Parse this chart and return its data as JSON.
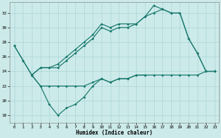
{
  "bg_color": "#cceaea",
  "grid_color": "#aad4d4",
  "line_color": "#1a7a6e",
  "xlabel": "Humidex (Indice chaleur)",
  "xlim": [
    -0.5,
    23.5
  ],
  "ylim": [
    17.0,
    33.5
  ],
  "yticks": [
    18,
    20,
    22,
    24,
    26,
    28,
    30,
    32
  ],
  "xticks": [
    0,
    1,
    2,
    3,
    4,
    5,
    6,
    7,
    8,
    9,
    10,
    11,
    12,
    13,
    14,
    15,
    16,
    17,
    18,
    19,
    20,
    21,
    22,
    23
  ],
  "line_upper1_x": [
    0,
    1,
    2,
    3,
    4,
    5,
    6,
    7,
    8,
    9,
    10,
    11,
    12,
    13,
    14,
    15,
    16,
    17,
    18,
    19,
    20,
    21,
    22,
    23
  ],
  "line_upper1_y": [
    27.5,
    25.5,
    23.5,
    24.5,
    24.5,
    25.0,
    26.0,
    27.0,
    28.0,
    29.0,
    30.5,
    30.0,
    30.5,
    30.5,
    30.5,
    31.5,
    33.0,
    32.5,
    32.0,
    32.0,
    28.5,
    26.5,
    24.0,
    24.0
  ],
  "line_upper2_x": [
    0,
    1,
    2,
    3,
    4,
    5,
    6,
    7,
    8,
    9,
    10,
    11,
    12,
    13,
    14,
    15,
    16,
    17,
    18,
    19,
    20,
    21,
    22,
    23
  ],
  "line_upper2_y": [
    27.5,
    25.5,
    23.5,
    24.5,
    24.5,
    24.5,
    25.5,
    26.5,
    27.5,
    28.5,
    30.0,
    29.5,
    30.0,
    30.0,
    30.5,
    31.5,
    32.0,
    32.5,
    32.0,
    32.0,
    28.5,
    26.5,
    24.0,
    24.0
  ],
  "line_dip_x": [
    2,
    3,
    4,
    5,
    6,
    7,
    8,
    9,
    10,
    11,
    12,
    13,
    14,
    15
  ],
  "line_dip_y": [
    23.5,
    22.0,
    19.5,
    18.0,
    19.0,
    19.5,
    20.5,
    22.0,
    23.0,
    22.5,
    23.0,
    23.0,
    23.5,
    23.5
  ],
  "line_flat_x": [
    2,
    3,
    4,
    5,
    6,
    7,
    8,
    9,
    10,
    11,
    12,
    13,
    14,
    15,
    16,
    17,
    18,
    19,
    20,
    21,
    22,
    23
  ],
  "line_flat_y": [
    23.5,
    22.0,
    22.0,
    22.0,
    22.0,
    22.0,
    22.0,
    22.5,
    23.0,
    22.5,
    23.0,
    23.0,
    23.5,
    23.5,
    23.5,
    23.5,
    23.5,
    23.5,
    23.5,
    23.5,
    24.0,
    24.0
  ]
}
